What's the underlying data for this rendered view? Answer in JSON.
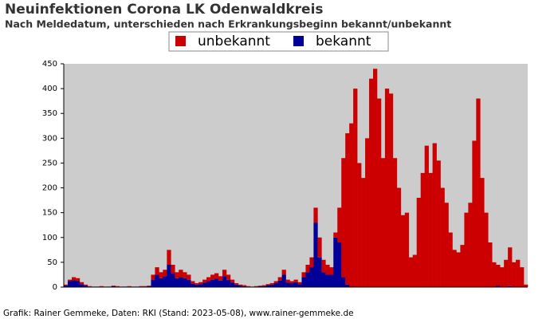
{
  "chart_data": {
    "type": "stacked-bar",
    "title": "Neuinfektionen Corona LK Odenwaldkreis",
    "subtitle": "Nach Meldedatum, unterschieden nach Erkrankungsbeginn bekannt/unbekannt",
    "footer": "Grafik: Rainer Gemmeke, Daten: RKI (Stand: 2023-05-08), www.rainer-gemmeke.de",
    "categories": [
      null,
      null,
      null,
      null,
      null,
      null,
      null,
      null,
      null,
      null,
      null,
      null,
      null,
      null,
      null,
      null,
      null,
      null,
      null,
      null,
      null,
      null,
      null,
      null,
      null,
      null,
      null,
      null,
      null,
      null,
      null,
      null,
      null,
      null,
      null,
      null,
      null,
      null,
      null,
      null,
      null,
      null,
      null,
      null,
      null,
      null,
      null,
      null,
      null,
      null,
      null,
      null,
      null,
      null,
      null,
      null,
      null,
      null,
      null,
      null,
      null,
      null,
      null,
      null,
      null,
      null,
      null,
      null,
      null,
      null,
      null,
      null,
      null,
      null,
      null,
      null,
      null,
      null,
      null,
      null,
      null,
      null,
      null,
      null,
      null,
      null,
      null,
      null,
      null,
      null,
      null,
      null,
      null,
      null,
      null,
      null,
      null,
      null,
      null,
      null,
      null,
      null,
      null,
      null,
      null,
      null,
      null,
      null,
      null,
      null,
      null,
      null,
      null,
      null,
      null,
      null,
      null
    ],
    "series": [
      {
        "name": "bekannt",
        "color": "#000099",
        "values": [
          3,
          12,
          14,
          12,
          6,
          3,
          1,
          0,
          1,
          1,
          0,
          1,
          2,
          1,
          0,
          1,
          1,
          0,
          1,
          1,
          1,
          2,
          15,
          25,
          18,
          22,
          45,
          28,
          18,
          20,
          18,
          15,
          7,
          5,
          6,
          9,
          12,
          15,
          17,
          13,
          22,
          15,
          9,
          5,
          3,
          2,
          1,
          0,
          1,
          2,
          2,
          4,
          5,
          8,
          13,
          25,
          9,
          8,
          10,
          6,
          20,
          30,
          40,
          130,
          60,
          30,
          25,
          25,
          100,
          90,
          20,
          5,
          0,
          0,
          0,
          0,
          0,
          0,
          0,
          0,
          0,
          0,
          0,
          0,
          0,
          0,
          0,
          0,
          0,
          0,
          0,
          0,
          0,
          0,
          0,
          0,
          0,
          0,
          0,
          0,
          0,
          0,
          0,
          0,
          0,
          0,
          0,
          0,
          0,
          3,
          0,
          0,
          2,
          0,
          0,
          0,
          0
        ]
      },
      {
        "name": "unbekannt",
        "color": "#cc0000",
        "values": [
          2,
          3,
          6,
          6,
          4,
          2,
          1,
          1,
          0,
          1,
          1,
          0,
          1,
          1,
          1,
          0,
          1,
          1,
          0,
          1,
          1,
          1,
          10,
          15,
          12,
          13,
          30,
          17,
          12,
          15,
          12,
          10,
          5,
          3,
          4,
          6,
          8,
          10,
          11,
          9,
          13,
          10,
          6,
          3,
          2,
          2,
          1,
          1,
          1,
          1,
          2,
          2,
          3,
          4,
          7,
          10,
          6,
          4,
          5,
          4,
          10,
          15,
          20,
          30,
          40,
          25,
          20,
          15,
          10,
          70,
          240,
          305,
          330,
          400,
          250,
          220,
          300,
          420,
          440,
          380,
          260,
          400,
          390,
          260,
          200,
          145,
          150,
          60,
          65,
          180,
          230,
          285,
          230,
          290,
          255,
          200,
          170,
          110,
          75,
          70,
          85,
          150,
          170,
          295,
          380,
          220,
          150,
          90,
          50,
          42,
          40,
          55,
          78,
          50,
          55,
          40,
          5
        ]
      }
    ],
    "legend_order": [
      "unbekannt",
      "bekannt"
    ],
    "ylim": [
      0,
      450
    ],
    "yticks": [
      0,
      50,
      100,
      150,
      200,
      250,
      300,
      350,
      400,
      450
    ],
    "background": "#cccccc"
  }
}
